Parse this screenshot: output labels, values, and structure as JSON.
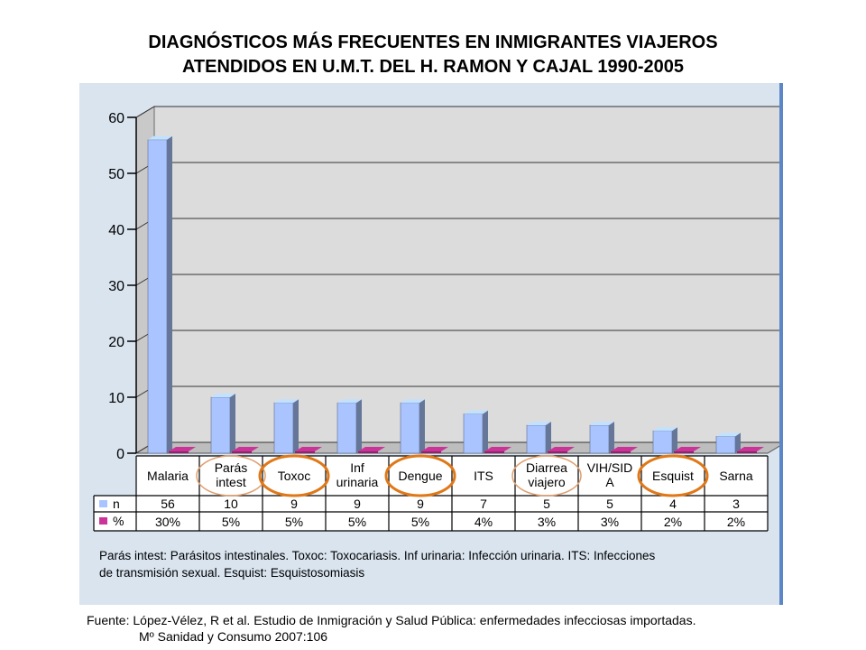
{
  "page": {
    "title_line1": "DIAGNÓSTICOS MÁS FRECUENTES EN INMIGRANTES VIAJEROS",
    "title_line2": "ATENDIDOS EN U.M.T. DEL H. RAMON Y CAJAL 1990-2005",
    "footnote_line1": "Parás intest: Parásitos intestinales. Toxoc: Toxocariasis. Inf urinaria: Infección urinaria. ITS: Infecciones",
    "footnote_line2": "de transmisión sexual. Esquist: Esquistosomiasis",
    "source_line1": "Fuente: López-Vélez, R et al. Estudio de Inmigración y Salud Pública: enfermedades infecciosas importadas.",
    "source_line2": "Mº Sanidad y Consumo 2007:106"
  },
  "chart_data": {
    "type": "bar",
    "categories": [
      [
        "Malaria"
      ],
      [
        "Parás",
        "intest"
      ],
      [
        "Toxoc"
      ],
      [
        "Inf",
        "urinaria"
      ],
      [
        "Dengue"
      ],
      [
        "ITS"
      ],
      [
        "Diarrea",
        "viajero"
      ],
      [
        "VIH/SID",
        "A"
      ],
      [
        "Esquist"
      ],
      [
        "Sarna"
      ]
    ],
    "ylim": [
      0,
      60
    ],
    "yticks": [
      0,
      10,
      20,
      30,
      40,
      50,
      60
    ],
    "grid": true,
    "series": [
      {
        "name": "n",
        "color": "#a9c4ff",
        "values": [
          56,
          10,
          9,
          9,
          9,
          7,
          5,
          5,
          4,
          3
        ],
        "labels": [
          "56",
          "10",
          "9",
          "9",
          "9",
          "7",
          "5",
          "5",
          "4",
          "3"
        ]
      },
      {
        "name": "%",
        "color": "#cc3399",
        "values": [
          30,
          5,
          5,
          5,
          5,
          4,
          3,
          3,
          2,
          2
        ],
        "labels": [
          "30%",
          "5%",
          "5%",
          "5%",
          "5%",
          "4%",
          "3%",
          "3%",
          "2%",
          "2%"
        ]
      }
    ],
    "circled_categories": [
      {
        "index": 1,
        "color": "#e0a070"
      },
      {
        "index": 2,
        "color": "#e07818"
      },
      {
        "index": 4,
        "color": "#e07818"
      },
      {
        "index": 6,
        "color": "#e0a070"
      },
      {
        "index": 8,
        "color": "#e07818"
      }
    ]
  }
}
